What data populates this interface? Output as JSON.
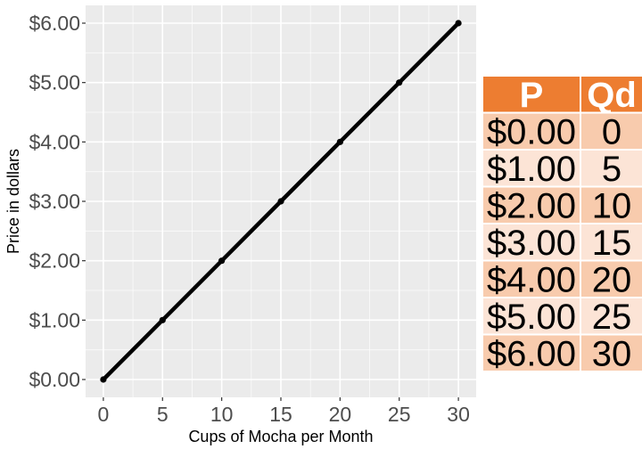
{
  "chart_data": {
    "type": "line",
    "title": "",
    "xlabel": "Cups of Mocha per Month",
    "ylabel": "Price in dollars",
    "x": [
      0,
      5,
      10,
      15,
      20,
      25,
      30
    ],
    "series": [
      {
        "values": [
          0,
          1,
          2,
          3,
          4,
          5,
          6
        ]
      }
    ],
    "xlim": [
      -1.5,
      31.5
    ],
    "ylim": [
      -0.3,
      6.3
    ],
    "x_ticks": [
      0,
      5,
      10,
      15,
      20,
      25,
      30
    ],
    "x_tick_labels": [
      "0",
      "5",
      "10",
      "15",
      "20",
      "25",
      "30"
    ],
    "y_ticks": [
      0,
      1,
      2,
      3,
      4,
      5,
      6
    ],
    "y_tick_labels": [
      "$0.00",
      "$1.00",
      "$2.00",
      "$3.00",
      "$4.00",
      "$5.00",
      "$6.00"
    ],
    "grid": true,
    "line_color": "#000000",
    "panel_background": "#ebebeb"
  },
  "table": {
    "headers": [
      "P",
      "Qd"
    ],
    "rows": [
      [
        "$0.00",
        "0"
      ],
      [
        "$1.00",
        "5"
      ],
      [
        "$2.00",
        "10"
      ],
      [
        "$3.00",
        "15"
      ],
      [
        "$4.00",
        "20"
      ],
      [
        "$5.00",
        "25"
      ],
      [
        "$6.00",
        "30"
      ]
    ],
    "header_color": "#ed7d31",
    "header_text_color": "#ffffff",
    "row_color_dark": "#f8cbad",
    "row_color_light": "#fce4d6",
    "text_color": "#000000"
  }
}
